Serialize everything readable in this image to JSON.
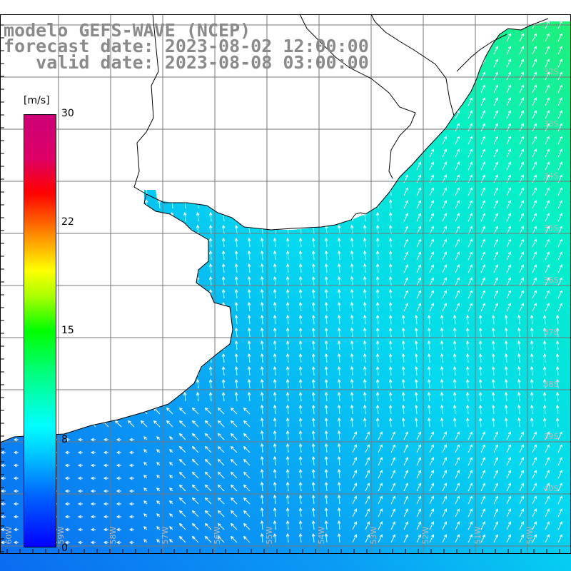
{
  "title": {
    "line1": "modelo GEFS-WAVE (NCEP)",
    "line2": "forecast date: 2023-08-02 12:00:00",
    "line3": "   valid date: 2023-08-08 03:00:00"
  },
  "colorbar": {
    "unit": "[m/s]",
    "ticks": [
      "30",
      "22",
      "15",
      "8",
      "0"
    ]
  },
  "lat_labels": [
    "32S",
    "33S",
    "34S",
    "35S",
    "36S",
    "37S",
    "38S",
    "39S",
    "40S"
  ],
  "lon_labels": [
    "60W",
    "59W",
    "58W",
    "57W",
    "56W",
    "55W",
    "54W",
    "53W",
    "52W",
    "51W",
    "50W"
  ],
  "colors": {
    "grid": "#777777",
    "coast": "#000000",
    "arrow": "#ffffff",
    "title": "#8a8a8a"
  }
}
